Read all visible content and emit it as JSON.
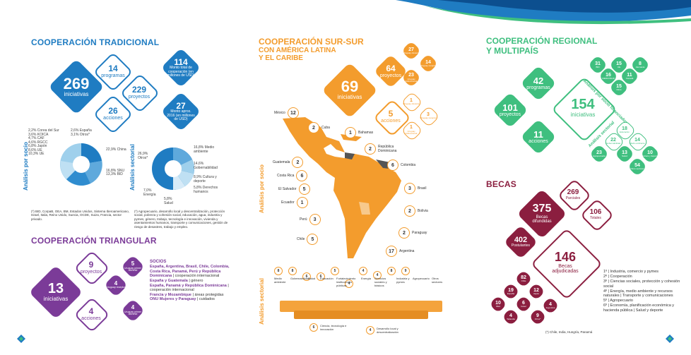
{
  "colors": {
    "blue": "#1f7cc2",
    "orange": "#f39c2d",
    "green": "#3fbf7f",
    "purple": "#7b3b98",
    "maroon": "#8b1e3f",
    "lightblue": "#9fd0ec"
  },
  "tradicional": {
    "title": "COOPERACIÓN TRADICIONAL",
    "main": {
      "num": "269",
      "label": "iniciativas"
    },
    "programas": {
      "num": "14",
      "label": "programas"
    },
    "proyectos": {
      "num": "229",
      "label": "proyectos"
    },
    "acciones": {
      "num": "26",
      "label": "acciones"
    },
    "monto_total": {
      "num": "114",
      "label": "Monto total de cooperación (en millones de USD)"
    },
    "monto_aprox": {
      "num": "27",
      "label": "Monto aprox. 2016 (en millones de USD)"
    },
    "analisis_socio": "Análisis por socio",
    "analisis_sectorial": "Análisis sectorial",
    "socio_legend": [
      "2,2% Corea del Sur",
      "2,6% España",
      "3,1% Otros*",
      "3,6% KOICA",
      "4,7% CAF",
      "4,6% RGCC",
      "6,8% Japón",
      "8,6% UE",
      "10,3% UE",
      "22,9% China",
      "16,8% SNU",
      "13,3% BID"
    ],
    "sector_legend": [
      "16,8% Medio ambiente",
      "14,6% Gobernabilidad",
      "8,9% Cultura y deporte",
      "5,8% Derechos humanos",
      "5,8% Salud",
      "7,0% Energía",
      "26,9% Otros*"
    ],
    "foot_socio": "(*) BID, CorpaB, OEA, BM, Estados Unidos, Sistema Iberoamericano, Israel, Italia, Reino Unido, Suecia, OCDE, Suiza, Francia, sector privado.",
    "foot_sector": "(*) Agropecuario, desarrollo local y descentralización, protección social, pobreza y cohesión social, educación, agua, industria y pymes, género, trabajo, tecnología e innovación, vivienda y asentamientos humanos, transporte y comunicaciones, gestión de riesgo de desastres, trabajo y empleo."
  },
  "triangular": {
    "title": "COOPERACIÓN TRIANGULAR",
    "main": {
      "num": "13",
      "label": "iniciativas"
    },
    "proyectos": {
      "num": "9",
      "label": "proyectos"
    },
    "acciones": {
      "num": "4",
      "label": "acciones"
    },
    "d1": {
      "num": "5",
      "label": "Uruguay primer oferente"
    },
    "d2": {
      "num": "4",
      "label": "Uruguay receptor"
    },
    "d3": {
      "num": "4",
      "label": "Uruguay primer oferente"
    },
    "socios_title": "SOCIOS",
    "socios": [
      {
        "name": "España, Argentina, Brasil, Chile, Colombia, Costa Rica, Panamá, Perú y República Dominicana",
        "desc": "| cooperación internacional"
      },
      {
        "name": "España y Guatemala",
        "desc": "| género"
      },
      {
        "name": "España, Panamá y República Dominicana",
        "desc": "| cooperación internacional"
      },
      {
        "name": "Francia y Mozambique",
        "desc": "| áreas protegidas"
      },
      {
        "name": "ONU Mujeres y Paraguay",
        "desc": "| cuidados"
      }
    ]
  },
  "sursur": {
    "title1": "COOPERACIÓN SUR-SUR",
    "title2": "CON AMÉRICA LATINA",
    "title3": "Y EL CARIBE",
    "main": {
      "num": "69",
      "label": "iniciativas"
    },
    "proyectos": {
      "num": "64",
      "label": "proyectos"
    },
    "acciones": {
      "num": "5",
      "label": "acciones"
    },
    "sm": [
      {
        "num": "27",
        "label": "Uruguay oferente"
      },
      {
        "num": "14",
        "label": "Uruguay receptor"
      },
      {
        "num": "23",
        "label": "Uruguay bidireccional"
      },
      {
        "num": "1",
        "label": "Uruguay oferente"
      },
      {
        "num": "3",
        "label": "Uruguay receptor"
      },
      {
        "num": "1",
        "label": "Uruguay bidireccional"
      }
    ],
    "analisis_socio": "Análisis por socio",
    "analisis_sectorial": "Análisis sectorial",
    "countries": [
      {
        "name": "México",
        "n": "12"
      },
      {
        "name": "Cuba",
        "n": "2"
      },
      {
        "name": "Bahamas",
        "n": "1"
      },
      {
        "name": "República Dominicana",
        "n": "2"
      },
      {
        "name": "Guatemala",
        "n": "2"
      },
      {
        "name": "Colombia",
        "n": "6"
      },
      {
        "name": "Costa Rica",
        "n": "6"
      },
      {
        "name": "El Salvador",
        "n": "5"
      },
      {
        "name": "Brasil",
        "n": "3"
      },
      {
        "name": "Ecuador",
        "n": "1"
      },
      {
        "name": "Bolivia",
        "n": "2"
      },
      {
        "name": "Perú",
        "n": "3"
      },
      {
        "name": "Paraguay",
        "n": "2"
      },
      {
        "name": "Chile",
        "n": "5"
      },
      {
        "name": "Argentina",
        "n": "17"
      }
    ],
    "sectors": [
      {
        "name": "Medio ambiente",
        "n": "8"
      },
      {
        "name": "Gobernabilidad",
        "n": "8"
      },
      {
        "name": "Salud",
        "n": "6"
      },
      {
        "name": "Educación",
        "n": "6"
      },
      {
        "name": "Fortalecimiento instituciones públicas",
        "n": "5"
      },
      {
        "name": "Energía",
        "n": "4"
      },
      {
        "name": "Servicios sociales y básicos",
        "n": "4"
      },
      {
        "name": "Industria y pymes",
        "n": "4"
      },
      {
        "name": "Agropecuario",
        "n": "8"
      },
      {
        "name": "Otros sectores",
        "n": "9"
      }
    ],
    "bottom": [
      {
        "name": "Ciencia, tecnología e innovación",
        "n": "6"
      },
      {
        "name": "Desarrollo local y descentralización",
        "n": "4"
      }
    ]
  },
  "regional": {
    "title1": "COOPERACIÓN REGIONAL",
    "title2": "Y MULTIPAÍS",
    "main": {
      "num": "154",
      "label": "iniciativas"
    },
    "programas": {
      "num": "42",
      "label": "programas"
    },
    "proyectos": {
      "num": "101",
      "label": "proyectos"
    },
    "acciones": {
      "num": "11",
      "label": "acciones"
    },
    "analisis_socio": "Análisis por socio financiador",
    "analisis_sectorial": "Análisis sectorial",
    "socios": [
      {
        "num": "31",
        "label": "BID"
      },
      {
        "num": "15",
        "label": "UE"
      },
      {
        "num": "8",
        "label": "Alemania"
      },
      {
        "num": "16",
        "label": "MERCOSUR"
      },
      {
        "num": "11",
        "label": "Canadá"
      },
      {
        "num": "15",
        "label": "Otros"
      }
    ],
    "sectores": [
      {
        "num": "18",
        "label": "Educación"
      },
      {
        "num": "22",
        "label": "Gobernabilidad"
      },
      {
        "num": "14",
        "label": "Medio ambiente"
      },
      {
        "num": "23",
        "label": "Agropecuario"
      },
      {
        "num": "13",
        "label": "Salud"
      },
      {
        "num": "10",
        "label": "Cultura y deporte"
      },
      {
        "num": "54",
        "label": "Otros sectores"
      }
    ]
  },
  "becas": {
    "title": "BECAS",
    "difundidas": {
      "num": "375",
      "label": "Becas difundidas"
    },
    "parciales": {
      "num": "269",
      "label": "Parciales"
    },
    "totales": {
      "num": "106",
      "label": "Totales"
    },
    "postulantes": {
      "num": "402",
      "label": "Postulantes"
    },
    "adjudicadas": {
      "num": "146",
      "label": "Becas adjudicadas"
    },
    "paises": [
      {
        "num": "82",
        "label": "Chile"
      },
      {
        "num": "19",
        "label": "España"
      },
      {
        "num": "12",
        "label": "Japón"
      },
      {
        "num": "4",
        "label": "Argentina"
      },
      {
        "num": "10",
        "label": "OEA"
      },
      {
        "num": "6",
        "label": "Israel"
      },
      {
        "num": "9",
        "label": "Otros*"
      },
      {
        "num": "4",
        "label": "Tailandia"
      }
    ],
    "ranking": [
      "1º | Industria, comercio y pymes",
      "2º | Cooperación",
      "3º | Ciencias sociales, protección y cohesión social",
      "4º | Energía, medio ambiente y recursos naturales | Transporte y comunicaciones",
      "5º | Agropecuario",
      "6º | Economía, planificación económica y hacienda pública | Salud y deporte"
    ],
    "foot": "(*) Chile, India, Hungría, Panamá"
  }
}
